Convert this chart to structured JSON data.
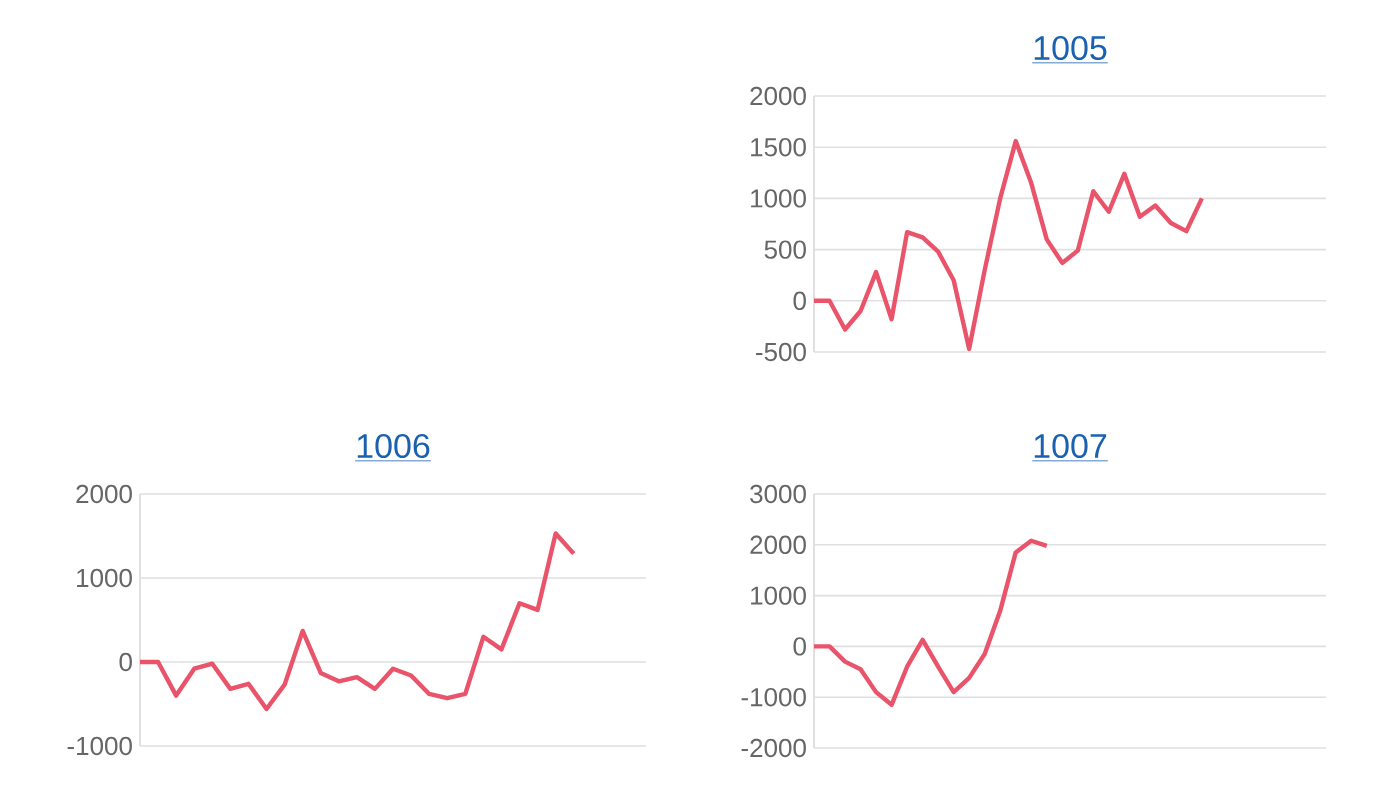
{
  "chart_data": [
    {
      "type": "line",
      "title": "1005",
      "categories": [
        null,
        null,
        null,
        null,
        null,
        null,
        null,
        null,
        null,
        null,
        null,
        null,
        null,
        null,
        null,
        null,
        null,
        null,
        null,
        null,
        null,
        null,
        null,
        null,
        null,
        null,
        null,
        null,
        null,
        null,
        null,
        null,
        null,
        null
      ],
      "series": [
        {
          "color": "#e9546b",
          "values": [
            0,
            0,
            -280,
            -100,
            280,
            -180,
            670,
            620,
            480,
            200,
            -470,
            300,
            1000,
            1560,
            1150,
            600,
            370,
            490,
            1070,
            870,
            1240,
            820,
            930,
            760,
            680,
            1000,
            null,
            null,
            null,
            null,
            null,
            null,
            null,
            null
          ]
        }
      ],
      "ylim": [
        -500,
        2000
      ],
      "yticks": [
        -500,
        0,
        500,
        1000,
        1500,
        2000
      ],
      "grid": "y",
      "tick_labels": "y"
    },
    {
      "type": "line",
      "title": "1006",
      "categories": [
        null,
        null,
        null,
        null,
        null,
        null,
        null,
        null,
        null,
        null,
        null,
        null,
        null,
        null,
        null,
        null,
        null,
        null,
        null,
        null,
        null,
        null,
        null,
        null,
        null,
        null,
        null,
        null,
        null
      ],
      "series": [
        {
          "color": "#e9546b",
          "values": [
            0,
            0,
            -400,
            -80,
            -20,
            -320,
            -260,
            -560,
            -270,
            370,
            -130,
            -230,
            -180,
            -320,
            -80,
            -160,
            -380,
            -430,
            -380,
            300,
            150,
            700,
            620,
            1530,
            1290,
            null,
            null,
            null,
            null
          ]
        }
      ],
      "ylim": [
        -1000,
        2000
      ],
      "yticks": [
        -1000,
        0,
        1000,
        2000
      ],
      "grid": "y",
      "tick_labels": "y"
    },
    {
      "type": "line",
      "title": "1007",
      "categories": [
        null,
        null,
        null,
        null,
        null,
        null,
        null,
        null,
        null,
        null,
        null,
        null,
        null,
        null,
        null,
        null,
        null,
        null,
        null,
        null,
        null,
        null,
        null,
        null,
        null,
        null,
        null,
        null,
        null,
        null,
        null,
        null,
        null,
        null
      ],
      "series": [
        {
          "color": "#e9546b",
          "values": [
            0,
            0,
            -300,
            -450,
            -900,
            -1150,
            -400,
            130,
            -400,
            -900,
            -620,
            -150,
            700,
            1850,
            2080,
            1980,
            null,
            null,
            null,
            null,
            null,
            null,
            null,
            null,
            null,
            null,
            null,
            null,
            null,
            null,
            null,
            null,
            null,
            null
          ]
        }
      ],
      "ylim": [
        -2000,
        3000
      ],
      "yticks": [
        -2000,
        -1000,
        0,
        1000,
        2000,
        3000
      ],
      "grid": "y",
      "tick_labels": "y"
    }
  ]
}
